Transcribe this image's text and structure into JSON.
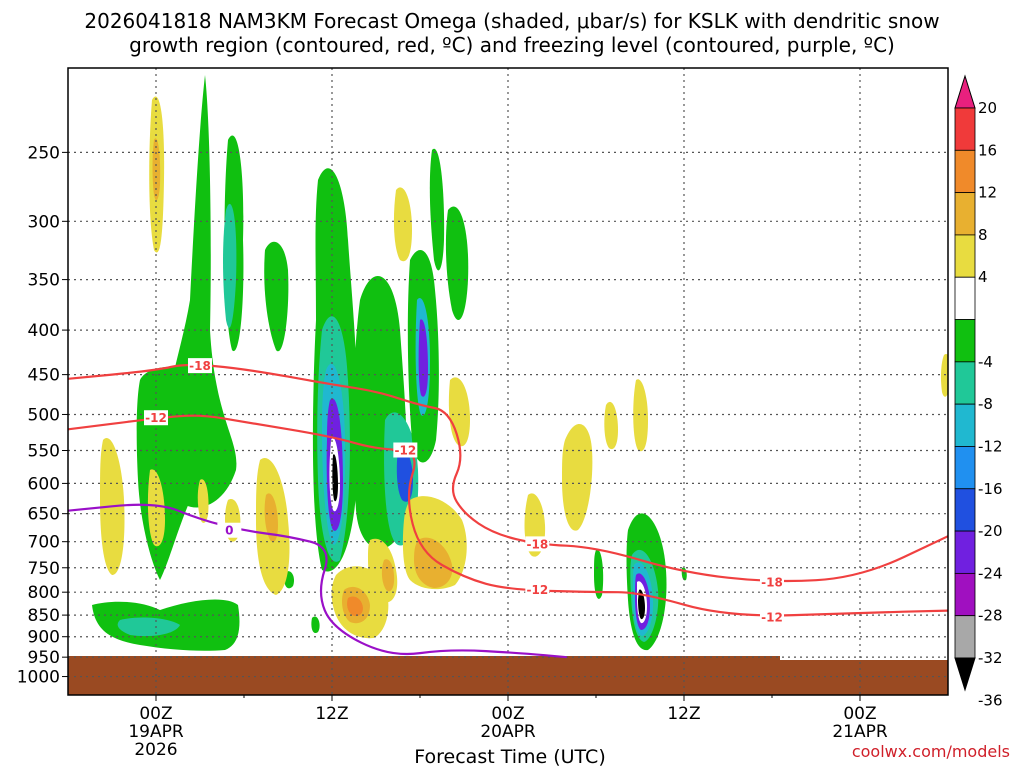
{
  "title_line1": "2026041818 NAM3KM Forecast Omega (shaded, μbar/s) for KSLK with dendritic snow",
  "title_line2": "growth region (contoured, red, ºC) and freezing level (contoured, purple, ºC)",
  "credit": "coolwx.com/models",
  "colors": {
    "temp_contour": "#f04040",
    "freezing_contour": "#9a10c8",
    "ground": "#9a4a22",
    "grid": "#555555"
  },
  "chart_data": {
    "type": "heatmap",
    "title": "2026041818 NAM3KM Forecast Omega (shaded, μbar/s) for KSLK with dendritic snow growth region (contoured, red, ºC) and freezing level (contoured, purple, ºC)",
    "xlabel": "Forecast Time (UTC)",
    "ylabel": "",
    "y_axis": "pressure (hPa), inverted",
    "ylim": [
      1050,
      200
    ],
    "xlim": [
      "2026-04-18T18Z",
      "2026-04-21T06Z"
    ],
    "grid": true,
    "yticks": [
      250,
      300,
      350,
      400,
      450,
      500,
      550,
      600,
      650,
      700,
      750,
      800,
      850,
      900,
      950,
      1000
    ],
    "xticks": [
      {
        "line1": "00Z",
        "line2": "19APR",
        "line3": "2026"
      },
      {
        "line1": "12Z",
        "line2": "",
        "line3": ""
      },
      {
        "line1": "00Z",
        "line2": "20APR",
        "line3": ""
      },
      {
        "line1": "12Z",
        "line2": "",
        "line3": ""
      },
      {
        "line1": "00Z",
        "line2": "21APR",
        "line3": ""
      }
    ],
    "colorbar": {
      "labels": [
        "20",
        "16",
        "12",
        "8",
        "4",
        "-4",
        "-8",
        "-12",
        "-16",
        "-20",
        "-24",
        "-28",
        "-32",
        "-36"
      ],
      "colors": [
        "#e8207e",
        "#f03a3a",
        "#f08a2a",
        "#e8b030",
        "#e8dc40",
        "#ffffff",
        "#10c010",
        "#20c898",
        "#20b8d0",
        "#2090f0",
        "#2050e0",
        "#7020e0",
        "#a010c0",
        "#a8a8a8",
        "#000000"
      ]
    },
    "omega_features": [
      {
        "sign": "upward",
        "peak_value": -36,
        "time": "2026-04-19T12Z",
        "pressure_hPa": 575
      },
      {
        "sign": "upward",
        "peak_value": -28,
        "time": "2026-04-19T18Z",
        "pressure_hPa": 420
      },
      {
        "sign": "upward",
        "peak_value": -36,
        "time": "2026-04-20T09Z",
        "pressure_hPa": 830
      },
      {
        "sign": "downward",
        "peak_value": 12,
        "time": "2026-04-19T12Z",
        "pressure_hPa": 830
      },
      {
        "sign": "downward",
        "peak_value": 8,
        "time": "2026-04-19T00Z",
        "pressure_hPa": 280
      }
    ],
    "series": [
      {
        "name": "-18",
        "color": "#f04040",
        "points": [
          [
            "2026-04-18T18Z",
            455
          ],
          [
            "2026-04-19T00Z",
            445
          ],
          [
            "2026-04-19T02Z",
            437
          ],
          [
            "2026-04-19T06Z",
            443
          ],
          [
            "2026-04-19T12Z",
            462
          ],
          [
            "2026-04-19T15Z",
            470
          ],
          [
            "2026-04-19T18Z",
            488
          ],
          [
            "2026-04-19T20Z",
            495
          ],
          [
            "2026-04-19T21Z",
            560
          ],
          [
            "2026-04-19T20Z",
            610
          ],
          [
            "2026-04-19T21Z",
            650
          ],
          [
            "2026-04-19T23Z",
            685
          ],
          [
            "2026-04-20T02Z",
            705
          ],
          [
            "2026-04-20T06Z",
            710
          ],
          [
            "2026-04-20T12Z",
            760
          ],
          [
            "2026-04-20T18Z",
            780
          ],
          [
            "2026-04-21T00Z",
            770
          ],
          [
            "2026-04-21T06Z",
            690
          ]
        ]
      },
      {
        "name": "-12",
        "color": "#f04040",
        "points": [
          [
            "2026-04-18T18Z",
            520
          ],
          [
            "2026-04-19T00Z",
            505
          ],
          [
            "2026-04-19T03Z",
            500
          ],
          [
            "2026-04-19T06Z",
            510
          ],
          [
            "2026-04-19T12Z",
            530
          ],
          [
            "2026-04-19T15Z",
            548
          ],
          [
            "2026-04-19T18Z",
            550
          ],
          [
            "2026-04-19T17Z",
            620
          ],
          [
            "2026-04-19T18Z",
            720
          ],
          [
            "2026-04-19T21Z",
            770
          ],
          [
            "2026-04-20T00Z",
            795
          ],
          [
            "2026-04-20T06Z",
            800
          ],
          [
            "2026-04-20T09Z",
            800
          ],
          [
            "2026-04-20T15Z",
            855
          ],
          [
            "2026-04-21T00Z",
            845
          ],
          [
            "2026-04-21T06Z",
            840
          ]
        ]
      },
      {
        "name": "0",
        "color": "#9a10c8",
        "points": [
          [
            "2026-04-18T18Z",
            645
          ],
          [
            "2026-04-19T00Z",
            630
          ],
          [
            "2026-04-19T03Z",
            660
          ],
          [
            "2026-04-19T06Z",
            680
          ],
          [
            "2026-04-19T09Z",
            690
          ],
          [
            "2026-04-19T12Z",
            710
          ],
          [
            "2026-04-19T11Z",
            800
          ],
          [
            "2026-04-19T12Z",
            880
          ],
          [
            "2026-04-19T16Z",
            950
          ],
          [
            "2026-04-19T20Z",
            930
          ],
          [
            "2026-04-20T01Z",
            940
          ],
          [
            "2026-04-20T04Z",
            950
          ]
        ]
      }
    ],
    "contour_labels": [
      {
        "text": "-18",
        "color": "#f04040",
        "time": "2026-04-19T03Z",
        "pressure_hPa": 440
      },
      {
        "text": "-12",
        "color": "#f04040",
        "time": "2026-04-19T00Z",
        "pressure_hPa": 505
      },
      {
        "text": "-12",
        "color": "#f04040",
        "time": "2026-04-19T17Z",
        "pressure_hPa": 550
      },
      {
        "text": "-18",
        "color": "#f04040",
        "time": "2026-04-20T02Z",
        "pressure_hPa": 705
      },
      {
        "text": "-12",
        "color": "#f04040",
        "time": "2026-04-20T02Z",
        "pressure_hPa": 795
      },
      {
        "text": "-18",
        "color": "#f04040",
        "time": "2026-04-20T18Z",
        "pressure_hPa": 780
      },
      {
        "text": "-12",
        "color": "#f04040",
        "time": "2026-04-20T18Z",
        "pressure_hPa": 855
      },
      {
        "text": "0",
        "color": "#9a10c8",
        "time": "2026-04-19T05Z",
        "pressure_hPa": 680
      }
    ],
    "ground_surface_hPa": 950
  }
}
